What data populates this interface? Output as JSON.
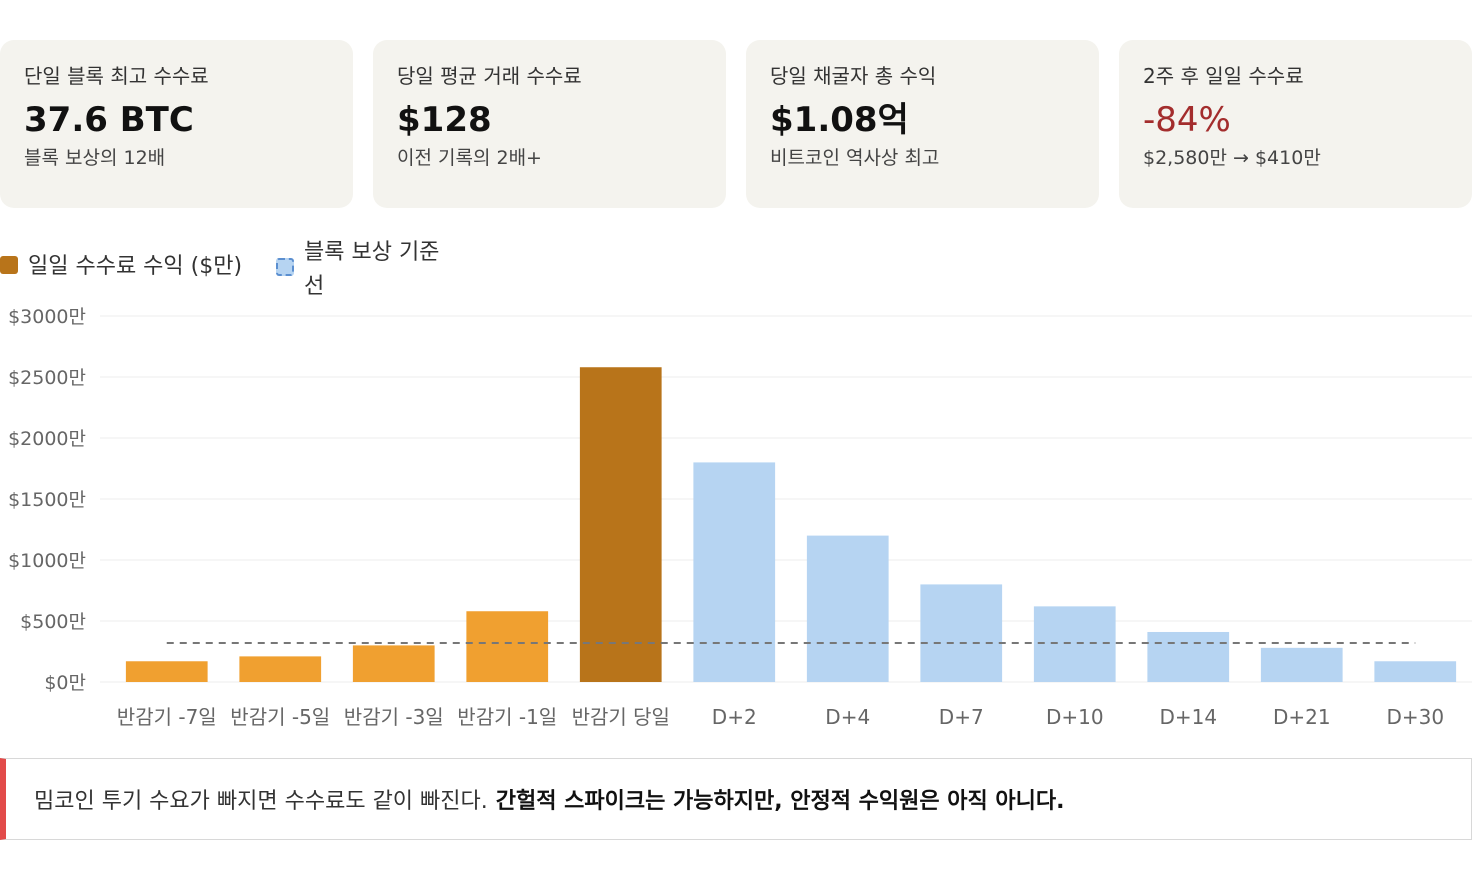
{
  "cards": [
    {
      "label": "단일 블록 최고 수수료",
      "value": "37.6 BTC",
      "sub": "블록 보상의 12배"
    },
    {
      "label": "당일 평균 거래 수수료",
      "value": "$128",
      "sub": "이전 기록의 2배+"
    },
    {
      "label": "당일 채굴자 총 수익",
      "value": "$1.08억",
      "sub": "비트코인 역사상 최고"
    },
    {
      "label": "2주 후 일일 수수료",
      "value": "-84%",
      "sub": "$2,580만 → $410만"
    }
  ],
  "legend": {
    "series1": "일일 수수료 수익 ($만)",
    "series2_line1": "블록 보상 기준",
    "series2_line2": "선"
  },
  "colors": {
    "pre_halving": "#f0a030",
    "halving_day": "#b8741a",
    "post_halving": "#b6d4f2",
    "baseline": "#777777",
    "negative": "#a32d2d",
    "callout_accent": "#e24b4a",
    "card_bg": "#f4f3ee"
  },
  "chart_data": {
    "type": "bar",
    "categories": [
      "반감기 -7일",
      "반감기 -5일",
      "반감기 -3일",
      "반감기 -1일",
      "반감기 당일",
      "D+2",
      "D+4",
      "D+7",
      "D+10",
      "D+14",
      "D+21",
      "D+30"
    ],
    "series": [
      {
        "name": "일일 수수료 수익 ($만)",
        "values": [
          170,
          210,
          300,
          580,
          2580,
          1800,
          1200,
          800,
          620,
          410,
          280,
          170
        ]
      }
    ],
    "bar_groups": [
      "pre",
      "pre",
      "pre",
      "pre",
      "day",
      "post",
      "post",
      "post",
      "post",
      "post",
      "post",
      "post"
    ],
    "baseline": {
      "name": "블록 보상 기준선",
      "value": 320
    },
    "y_ticks": [
      0,
      500,
      1000,
      1500,
      2000,
      2500,
      3000
    ],
    "y_tick_labels": [
      "$0만",
      "$500만",
      "$1000만",
      "$1500만",
      "$2000만",
      "$2500만",
      "$3000만"
    ],
    "ylim": [
      0,
      3000
    ],
    "grid": true,
    "legend_position": "top-left"
  },
  "callout": {
    "text": "밈코인 투기 수요가 빠지면 수수료도 같이 빠진다.",
    "strong": "간헐적 스파이크는 가능하지만, 안정적 수익원은 아직 아니다."
  }
}
